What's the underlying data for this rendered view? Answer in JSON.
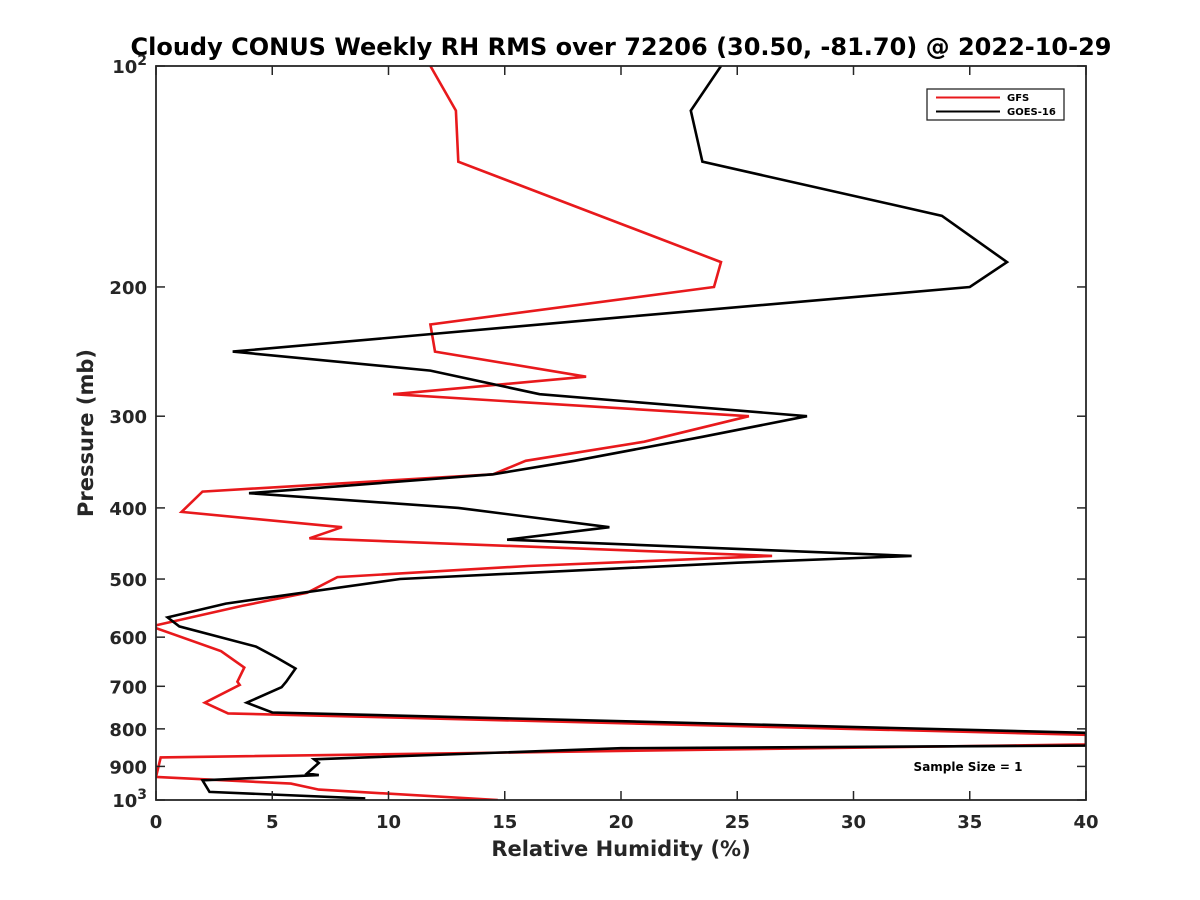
{
  "chart_data": {
    "type": "line",
    "title": "Cloudy CONUS Weekly RH RMS over 72206 (30.50, -81.70) @ 2022-10-29",
    "xlabel": "Relative Humidity (%)",
    "ylabel": "Pressure (mb)",
    "xlim": [
      0,
      40
    ],
    "ylim": [
      100,
      1000
    ],
    "yscale": "log",
    "yreversed": true,
    "x_ticks": [
      0,
      5,
      10,
      15,
      20,
      25,
      30,
      35,
      40
    ],
    "x_tick_labels": [
      "0",
      "5",
      "10",
      "15",
      "20",
      "25",
      "30",
      "35",
      "40"
    ],
    "y_ticks": [
      100,
      200,
      300,
      400,
      500,
      600,
      700,
      800,
      900,
      1000
    ],
    "y_tick_labels": [
      {
        "base": "10",
        "exp": "2"
      },
      {
        "text": "200"
      },
      {
        "text": "300"
      },
      {
        "text": "400"
      },
      {
        "text": "500"
      },
      {
        "text": "600"
      },
      {
        "text": "700"
      },
      {
        "text": "800"
      },
      {
        "text": "900"
      },
      {
        "base": "10",
        "exp": "3"
      }
    ],
    "legend_position": "top-right",
    "annotation": "Sample Size = 1",
    "series": [
      {
        "name": "GFS",
        "color": "#e8191c",
        "points": [
          [
            11.8,
            100
          ],
          [
            12.9,
            115
          ],
          [
            13.0,
            135
          ],
          [
            20.2,
            165
          ],
          [
            24.3,
            185
          ],
          [
            24.0,
            200
          ],
          [
            11.8,
            225
          ],
          [
            12.0,
            245
          ],
          [
            18.5,
            265
          ],
          [
            10.2,
            280
          ],
          [
            25.5,
            300
          ],
          [
            21.0,
            325
          ],
          [
            15.9,
            345
          ],
          [
            14.5,
            360
          ],
          [
            2.0,
            380
          ],
          [
            1.1,
            405
          ],
          [
            8.0,
            425
          ],
          [
            6.6,
            440
          ],
          [
            26.5,
            465
          ],
          [
            16.0,
            480
          ],
          [
            7.8,
            497
          ],
          [
            6.5,
            522
          ],
          [
            3.7,
            544
          ],
          [
            -0.2,
            580
          ],
          [
            2.8,
            627
          ],
          [
            3.8,
            660
          ],
          [
            3.5,
            690
          ],
          [
            3.6,
            697
          ],
          [
            2.1,
            737
          ],
          [
            3.1,
            762
          ],
          [
            40,
            815
          ],
          [
            40,
            840
          ],
          [
            0.2,
            875
          ],
          [
            0.0,
            930
          ],
          [
            5.8,
            950
          ],
          [
            7.0,
            968
          ],
          [
            14.7,
            1000
          ]
        ]
      },
      {
        "name": "GOES-16",
        "color": "#000000",
        "points": [
          [
            24.3,
            100
          ],
          [
            23.0,
            115
          ],
          [
            23.5,
            135
          ],
          [
            33.8,
            160
          ],
          [
            36.6,
            185
          ],
          [
            35.0,
            200
          ],
          [
            20.0,
            220
          ],
          [
            3.3,
            245
          ],
          [
            11.8,
            260
          ],
          [
            16.5,
            280
          ],
          [
            28.0,
            300
          ],
          [
            23.5,
            320
          ],
          [
            18.0,
            345
          ],
          [
            14.5,
            360
          ],
          [
            4.0,
            382
          ],
          [
            13.0,
            400
          ],
          [
            19.5,
            425
          ],
          [
            15.1,
            442
          ],
          [
            32.5,
            465
          ],
          [
            25.0,
            475
          ],
          [
            10.5,
            500
          ],
          [
            3.0,
            540
          ],
          [
            0.5,
            564
          ],
          [
            1.0,
            580
          ],
          [
            4.3,
            618
          ],
          [
            5.2,
            640
          ],
          [
            6.0,
            662
          ],
          [
            5.6,
            690
          ],
          [
            5.4,
            702
          ],
          [
            3.9,
            737
          ],
          [
            5.0,
            760
          ],
          [
            40,
            810
          ],
          [
            40,
            843
          ],
          [
            20.0,
            850
          ],
          [
            6.8,
            880
          ],
          [
            7.0,
            890
          ],
          [
            6.5,
            920
          ],
          [
            7.0,
            925
          ],
          [
            2.0,
            940
          ],
          [
            2.3,
            975
          ],
          [
            9.0,
            995
          ]
        ]
      }
    ]
  }
}
